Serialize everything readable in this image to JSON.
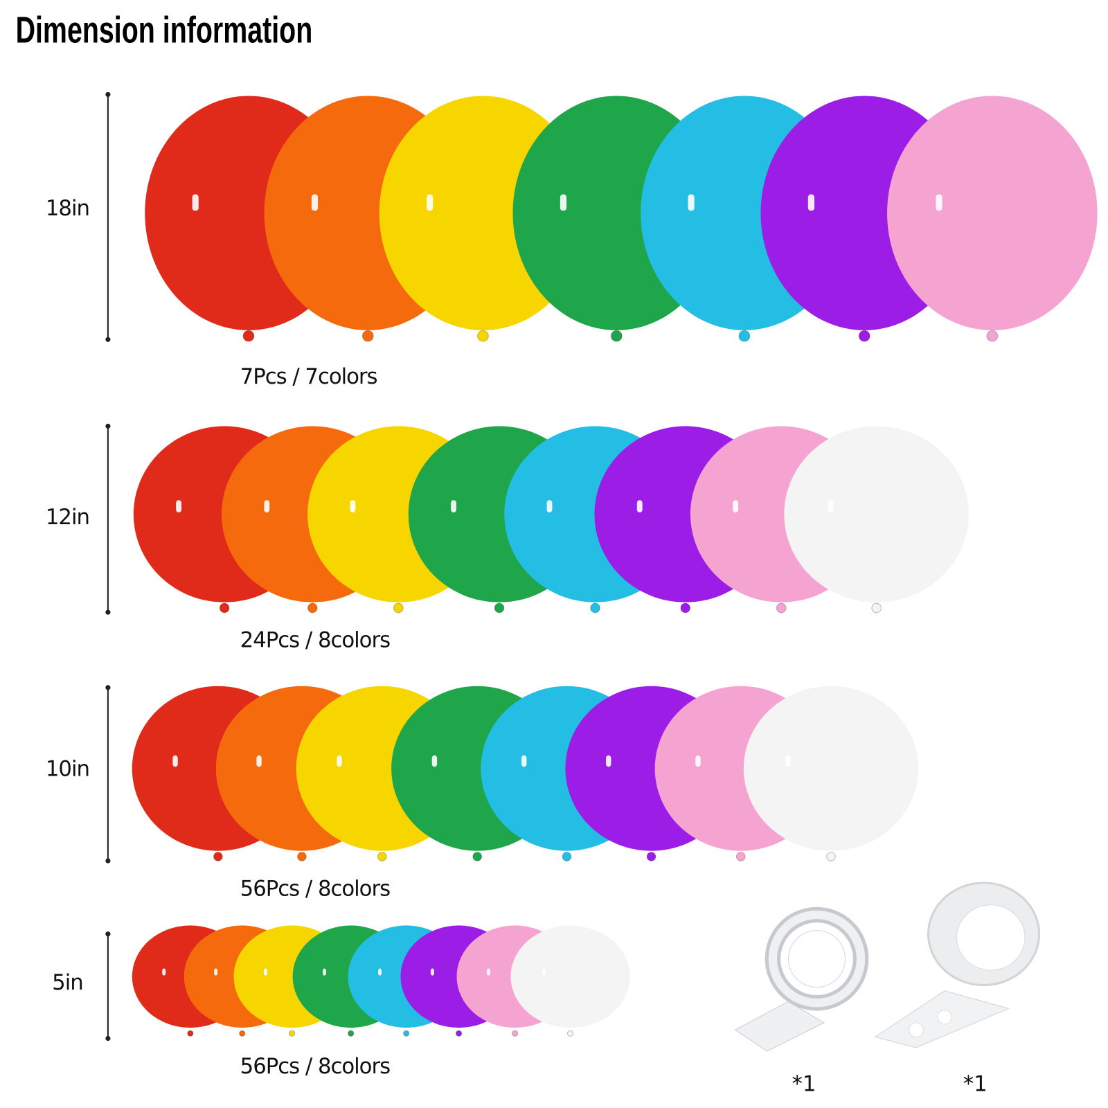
{
  "title": "Dimension information",
  "rows": [
    {
      "size": "18in",
      "count": "7Pcs / 7colors"
    },
    {
      "size": "12in",
      "count": "24Pcs / 8colors"
    },
    {
      "size": "10in",
      "count": "56Pcs / 8colors"
    },
    {
      "size": "5in",
      "count": "56Pcs / 8colors"
    }
  ],
  "accessories": [
    {
      "quantity": "*1"
    },
    {
      "quantity": "*1"
    }
  ]
}
